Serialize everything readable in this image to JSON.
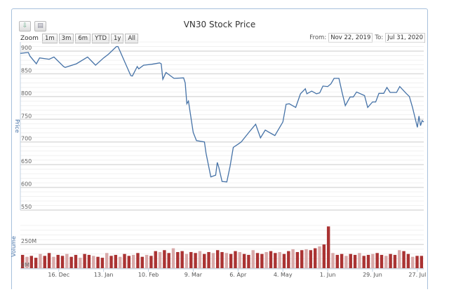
{
  "toolbar": {
    "export_icon": "download-icon",
    "print_icon": "print-icon"
  },
  "range_selector": {
    "zoom_label": "Zoom",
    "buttons": [
      "1m",
      "3m",
      "6m",
      "YTD",
      "1y",
      "All"
    ],
    "from_label": "From:",
    "from_value": "Nov 22, 2019",
    "to_label": "To:",
    "to_value": "Jul 31, 2020"
  },
  "colors": {
    "price_line": "#4572a7",
    "volume_bar": "#aa3333",
    "border": "#a7c0dc"
  },
  "chart_data": {
    "type": "line",
    "title": "VN30 Stock Price",
    "ylabel": "Price",
    "ylim": [
      550,
      920
    ],
    "yticks": [
      550,
      600,
      650,
      700,
      750,
      800,
      850,
      900
    ],
    "xlim": [
      "2019-11-22",
      "2020-07-31"
    ],
    "xticks": [
      {
        "date": "2019-12-16",
        "label": "16. Dec"
      },
      {
        "date": "2020-01-13",
        "label": "13. Jan"
      },
      {
        "date": "2020-02-10",
        "label": "10. Feb"
      },
      {
        "date": "2020-03-09",
        "label": "9. Mar"
      },
      {
        "date": "2020-04-06",
        "label": "6. Apr"
      },
      {
        "date": "2020-05-04",
        "label": "4. May"
      },
      {
        "date": "2020-06-01",
        "label": "1. Jun"
      },
      {
        "date": "2020-06-29",
        "label": "29. Jun"
      },
      {
        "date": "2020-07-27",
        "label": "27. Jul"
      }
    ],
    "grid": true,
    "price": [
      [
        "2019-11-22",
        895
      ],
      [
        "2019-11-27",
        897
      ],
      [
        "2019-11-28",
        889
      ],
      [
        "2019-12-02",
        872
      ],
      [
        "2019-12-04",
        885
      ],
      [
        "2019-12-10",
        882
      ],
      [
        "2019-12-13",
        887
      ],
      [
        "2019-12-19",
        866
      ],
      [
        "2019-12-20",
        864
      ],
      [
        "2019-12-27",
        872
      ],
      [
        "2020-01-03",
        887
      ],
      [
        "2020-01-06",
        876
      ],
      [
        "2020-01-08",
        869
      ],
      [
        "2020-01-13",
        885
      ],
      [
        "2020-01-16",
        893
      ],
      [
        "2020-01-21",
        910
      ],
      [
        "2020-01-22",
        910
      ],
      [
        "2020-01-30",
        846
      ],
      [
        "2020-01-31",
        845
      ],
      [
        "2020-02-03",
        866
      ],
      [
        "2020-02-04",
        861
      ],
      [
        "2020-02-07",
        869
      ],
      [
        "2020-02-12",
        871
      ],
      [
        "2020-02-17",
        874
      ],
      [
        "2020-02-18",
        872
      ],
      [
        "2020-02-19",
        838
      ],
      [
        "2020-02-21",
        853
      ],
      [
        "2020-02-24",
        845
      ],
      [
        "2020-02-26",
        840
      ],
      [
        "2020-03-03",
        841
      ],
      [
        "2020-03-04",
        830
      ],
      [
        "2020-03-05",
        784
      ],
      [
        "2020-03-06",
        790
      ],
      [
        "2020-03-09",
        721
      ],
      [
        "2020-03-11",
        703
      ],
      [
        "2020-03-16",
        700
      ],
      [
        "2020-03-17",
        675
      ],
      [
        "2020-03-20",
        623
      ],
      [
        "2020-03-23",
        627
      ],
      [
        "2020-03-24",
        655
      ],
      [
        "2020-03-25",
        644
      ],
      [
        "2020-03-27",
        613
      ],
      [
        "2020-03-30",
        612
      ],
      [
        "2020-04-01",
        646
      ],
      [
        "2020-04-03",
        688
      ],
      [
        "2020-04-06",
        695
      ],
      [
        "2020-04-08",
        700
      ],
      [
        "2020-04-13",
        722
      ],
      [
        "2020-04-17",
        739
      ],
      [
        "2020-04-20",
        709
      ],
      [
        "2020-04-23",
        726
      ],
      [
        "2020-04-27",
        718
      ],
      [
        "2020-04-29",
        714
      ],
      [
        "2020-05-04",
        744
      ],
      [
        "2020-05-06",
        783
      ],
      [
        "2020-05-08",
        784
      ],
      [
        "2020-05-12",
        776
      ],
      [
        "2020-05-15",
        806
      ],
      [
        "2020-05-18",
        817
      ],
      [
        "2020-05-19",
        806
      ],
      [
        "2020-05-22",
        812
      ],
      [
        "2020-05-25",
        806
      ],
      [
        "2020-05-27",
        808
      ],
      [
        "2020-05-29",
        823
      ],
      [
        "2020-06-01",
        822
      ],
      [
        "2020-06-03",
        828
      ],
      [
        "2020-06-05",
        840
      ],
      [
        "2020-06-08",
        840
      ],
      [
        "2020-06-10",
        809
      ],
      [
        "2020-06-12",
        780
      ],
      [
        "2020-06-15",
        799
      ],
      [
        "2020-06-17",
        799
      ],
      [
        "2020-06-19",
        810
      ],
      [
        "2020-06-24",
        802
      ],
      [
        "2020-06-26",
        776
      ],
      [
        "2020-06-29",
        788
      ],
      [
        "2020-07-01",
        788
      ],
      [
        "2020-07-03",
        807
      ],
      [
        "2020-07-06",
        807
      ],
      [
        "2020-07-08",
        820
      ],
      [
        "2020-07-10",
        809
      ],
      [
        "2020-07-14",
        809
      ],
      [
        "2020-07-16",
        822
      ],
      [
        "2020-07-20",
        807
      ],
      [
        "2020-07-22",
        800
      ],
      [
        "2020-07-24",
        776
      ],
      [
        "2020-07-27",
        732
      ],
      [
        "2020-07-28",
        757
      ],
      [
        "2020-07-29",
        736
      ],
      [
        "2020-07-30",
        747
      ],
      [
        "2020-07-31",
        744
      ]
    ],
    "volume_label": "Volume",
    "volume_ylim": [
      0,
      450
    ],
    "volume_yticks": [
      {
        "value": 0,
        "label": "0M"
      },
      {
        "value": 250,
        "label": "250M"
      }
    ],
    "volume_unit": "M",
    "volume": [
      140,
      120,
      130,
      110,
      150,
      130,
      160,
      120,
      140,
      130,
      150,
      120,
      140,
      110,
      150,
      140,
      130,
      120,
      110,
      160,
      130,
      140,
      120,
      150,
      130,
      140,
      160,
      120,
      140,
      130,
      180,
      170,
      190,
      160,
      210,
      170,
      180,
      150,
      170,
      160,
      180,
      150,
      170,
      160,
      190,
      170,
      160,
      150,
      180,
      170,
      150,
      140,
      190,
      160,
      150,
      170,
      180,
      160,
      170,
      150,
      180,
      200,
      170,
      190,
      200,
      190,
      210,
      230,
      250,
      440,
      160,
      140,
      150,
      130,
      150,
      140,
      160,
      130,
      140,
      150,
      160,
      140,
      130,
      150,
      140,
      190,
      180,
      150,
      120,
      130,
      130
    ]
  }
}
